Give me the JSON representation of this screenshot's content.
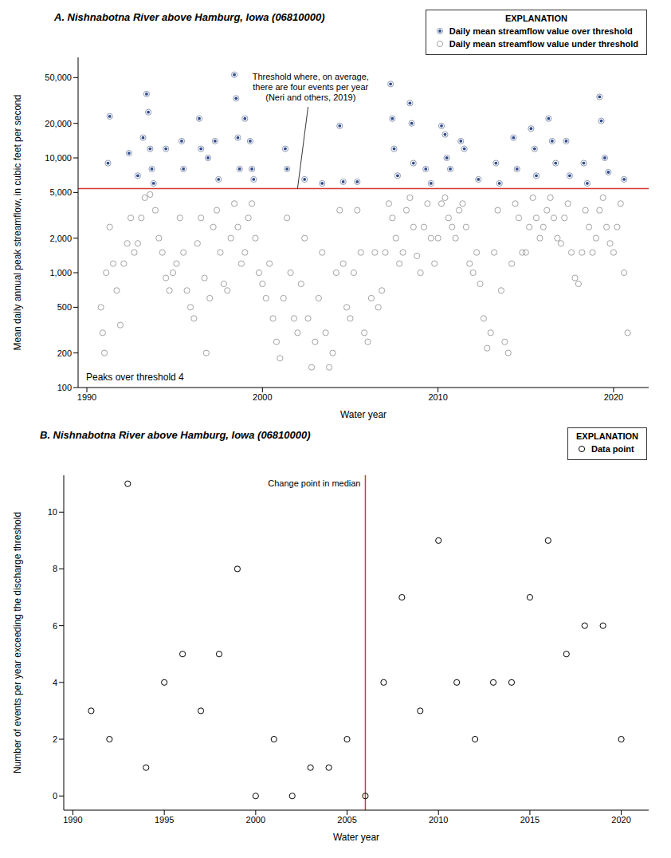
{
  "chart_data": [
    {
      "type": "scatter",
      "title": "A. Nishnabotna River above Hamburg, Iowa (06810000)",
      "x_label": "Water year",
      "y_label": "Mean daily annual peak streamflow, in cubic feet per second",
      "log": "y",
      "grid": false,
      "legend": "upper right",
      "legend_title": "EXPLANATION",
      "xlim": [
        1989.5,
        2022
      ],
      "xticks": [
        1990,
        2000,
        2010,
        2020
      ],
      "ylim": [
        100,
        75000
      ],
      "yticks": [
        100,
        200,
        500,
        {
          "value": 1000,
          "label": "1,000"
        },
        {
          "value": 2000,
          "label": "2,000"
        },
        {
          "value": 5000,
          "label": "5,000"
        },
        {
          "value": 10000,
          "label": "10,000"
        },
        {
          "value": 20000,
          "label": "20,000"
        },
        {
          "value": 50000,
          "label": "50,000"
        }
      ],
      "reference_lines": [
        {
          "y": 5400,
          "color": "#d23b33",
          "label": "Threshold where, on average, there are four events per year (Neri and others, 2019)"
        }
      ],
      "annotations": [
        {
          "text": "Peaks over threshold 4"
        }
      ],
      "series": [
        {
          "name": "Daily mean streamflow value over threshold",
          "color": "#2e4a8c",
          "marker": "dot_in_circle",
          "x": [
            1991.2,
            1991.3,
            1992.4,
            1992.9,
            1993.2,
            1993.4,
            1993.5,
            1993.6,
            1993.7,
            1993.8,
            1994.5,
            1995.4,
            1995.5,
            1996.4,
            1996.5,
            1996.9,
            1997.3,
            1997.5,
            1998.4,
            1998.5,
            1998.6,
            1998.7,
            1999.0,
            1999.3,
            1999.4,
            1999.5,
            2001.3,
            2001.4,
            2002.4,
            2003.4,
            2004.4,
            2004.6,
            2005.4,
            2007.3,
            2007.4,
            2007.5,
            2007.7,
            2008.4,
            2008.5,
            2008.6,
            2009.3,
            2009.6,
            2010.2,
            2010.4,
            2010.5,
            2010.7,
            2011.3,
            2011.5,
            2012.3,
            2013.3,
            2013.5,
            2014.3,
            2014.5,
            2015.3,
            2015.5,
            2015.6,
            2016.3,
            2016.5,
            2016.7,
            2017.3,
            2017.5,
            2018.3,
            2018.5,
            2019.2,
            2019.3,
            2019.5,
            2019.7,
            2020.6
          ],
          "values": [
            9000,
            23000,
            11000,
            7000,
            15000,
            36000,
            25000,
            12000,
            8000,
            6000,
            12000,
            14000,
            8000,
            22000,
            12000,
            10000,
            14000,
            6500,
            53000,
            33000,
            15000,
            8000,
            22000,
            14000,
            8000,
            6500,
            12000,
            8000,
            6500,
            6000,
            19000,
            6200,
            6200,
            44000,
            22000,
            12000,
            7000,
            30000,
            20000,
            9000,
            8000,
            6000,
            19000,
            16000,
            10000,
            8000,
            14000,
            12000,
            6500,
            9000,
            6000,
            15000,
            8000,
            18000,
            12000,
            7000,
            22000,
            14000,
            9000,
            14000,
            7000,
            9000,
            6000,
            34000,
            21000,
            10000,
            7500,
            6500
          ]
        },
        {
          "name": "Daily mean streamflow value under threshold",
          "color": "#a3a3a3",
          "marker": "open_circle",
          "x": [
            1990.8,
            1990.9,
            1991.0,
            1991.1,
            1991.3,
            1991.5,
            1991.7,
            1991.9,
            1992.1,
            1992.3,
            1992.5,
            1992.7,
            1992.9,
            1993.1,
            1993.3,
            1993.6,
            1993.9,
            1994.1,
            1994.3,
            1994.5,
            1994.7,
            1994.9,
            1995.1,
            1995.3,
            1995.5,
            1995.7,
            1995.9,
            1996.1,
            1996.3,
            1996.5,
            1996.7,
            1996.8,
            1997.0,
            1997.2,
            1997.4,
            1997.6,
            1997.8,
            1998.0,
            1998.2,
            1998.4,
            1998.6,
            1998.8,
            1999.0,
            1999.2,
            1999.4,
            1999.6,
            1999.8,
            2000.0,
            2000.2,
            2000.4,
            2000.6,
            2000.8,
            2001.0,
            2001.2,
            2001.4,
            2001.6,
            2001.8,
            2002.0,
            2002.2,
            2002.4,
            2002.6,
            2002.8,
            2003.0,
            2003.2,
            2003.4,
            2003.6,
            2003.8,
            2004.0,
            2004.2,
            2004.4,
            2004.6,
            2004.8,
            2005.0,
            2005.2,
            2005.4,
            2005.6,
            2005.8,
            2006.0,
            2006.2,
            2006.4,
            2006.6,
            2006.8,
            2007.0,
            2007.2,
            2007.4,
            2007.6,
            2007.8,
            2008.0,
            2008.2,
            2008.4,
            2008.6,
            2008.8,
            2009.0,
            2009.2,
            2009.4,
            2009.6,
            2009.8,
            2010.0,
            2010.2,
            2010.4,
            2010.6,
            2010.8,
            2011.0,
            2011.2,
            2011.4,
            2011.6,
            2011.8,
            2012.0,
            2012.2,
            2012.4,
            2012.6,
            2012.8,
            2013.0,
            2013.2,
            2013.4,
            2013.6,
            2013.8,
            2014.0,
            2014.2,
            2014.4,
            2014.6,
            2014.8,
            2015.0,
            2015.2,
            2015.4,
            2015.6,
            2015.8,
            2016.0,
            2016.2,
            2016.4,
            2016.6,
            2016.8,
            2017.0,
            2017.2,
            2017.4,
            2017.6,
            2017.8,
            2018.0,
            2018.2,
            2018.4,
            2018.6,
            2018.8,
            2019.0,
            2019.2,
            2019.4,
            2019.6,
            2019.8,
            2020.0,
            2020.2,
            2020.4,
            2020.6,
            2020.8
          ],
          "values": [
            500,
            300,
            200,
            1000,
            2500,
            1200,
            700,
            350,
            1200,
            1800,
            3000,
            1500,
            1800,
            3000,
            4500,
            4800,
            3500,
            2000,
            1500,
            900,
            700,
            1000,
            1200,
            3000,
            1500,
            700,
            500,
            400,
            1800,
            3000,
            900,
            200,
            600,
            2500,
            3500,
            1500,
            800,
            700,
            2000,
            4000,
            2500,
            1200,
            1500,
            3000,
            4000,
            2000,
            1000,
            800,
            600,
            1200,
            400,
            250,
            180,
            600,
            3000,
            1000,
            400,
            300,
            800,
            2000,
            400,
            150,
            250,
            600,
            1500,
            300,
            150,
            200,
            1000,
            3500,
            1200,
            500,
            400,
            1000,
            3500,
            1500,
            300,
            250,
            600,
            1500,
            500,
            700,
            1500,
            4000,
            3000,
            2000,
            1200,
            1500,
            3500,
            4500,
            2500,
            1400,
            1000,
            2500,
            4000,
            2000,
            1200,
            2000,
            4000,
            4500,
            3000,
            2500,
            2000,
            3500,
            4000,
            2500,
            1200,
            1000,
            1500,
            800,
            400,
            220,
            300,
            1500,
            3500,
            700,
            250,
            200,
            1200,
            4000,
            3000,
            1500,
            1500,
            2500,
            4500,
            3000,
            2000,
            2500,
            3500,
            4500,
            3000,
            2000,
            1800,
            3000,
            4000,
            1500,
            900,
            800,
            1500,
            3500,
            2500,
            1500,
            2000,
            3500,
            4500,
            2500,
            1800,
            1500,
            2500,
            4000,
            1000,
            300
          ]
        }
      ]
    },
    {
      "type": "scatter",
      "title": "B. Nishnabotna River above Hamburg, Iowa (06810000)",
      "x_label": "Water year",
      "y_label": "Number of events per year exceeding the discharge threshold",
      "grid": false,
      "legend": "upper right",
      "legend_title": "EXPLANATION",
      "xlim": [
        1989.5,
        2021.5
      ],
      "xticks": [
        1990,
        1995,
        2000,
        2005,
        2010,
        2015,
        2020
      ],
      "ylim": [
        -0.5,
        11.3
      ],
      "yticks": [
        0,
        2,
        4,
        6,
        8,
        10
      ],
      "reference_lines": [
        {
          "x": 2006,
          "color": "#d23b33",
          "label": "Change point in median"
        }
      ],
      "series": [
        {
          "name": "Data point",
          "color": "#000000",
          "marker": "open_circle",
          "x": [
            1991,
            1992,
            1993,
            1994,
            1995,
            1996,
            1997,
            1998,
            1999,
            2000,
            2001,
            2002,
            2003,
            2004,
            2005,
            2006,
            2007,
            2008,
            2009,
            2010,
            2011,
            2012,
            2013,
            2014,
            2015,
            2016,
            2017,
            2018,
            2019,
            2020
          ],
          "values": [
            3,
            2,
            11,
            1,
            4,
            5,
            3,
            5,
            8,
            0,
            2,
            0,
            1,
            1,
            2,
            0,
            4,
            7,
            3,
            9,
            4,
            2,
            4,
            4,
            7,
            9,
            5,
            6,
            6,
            2
          ]
        }
      ]
    }
  ]
}
